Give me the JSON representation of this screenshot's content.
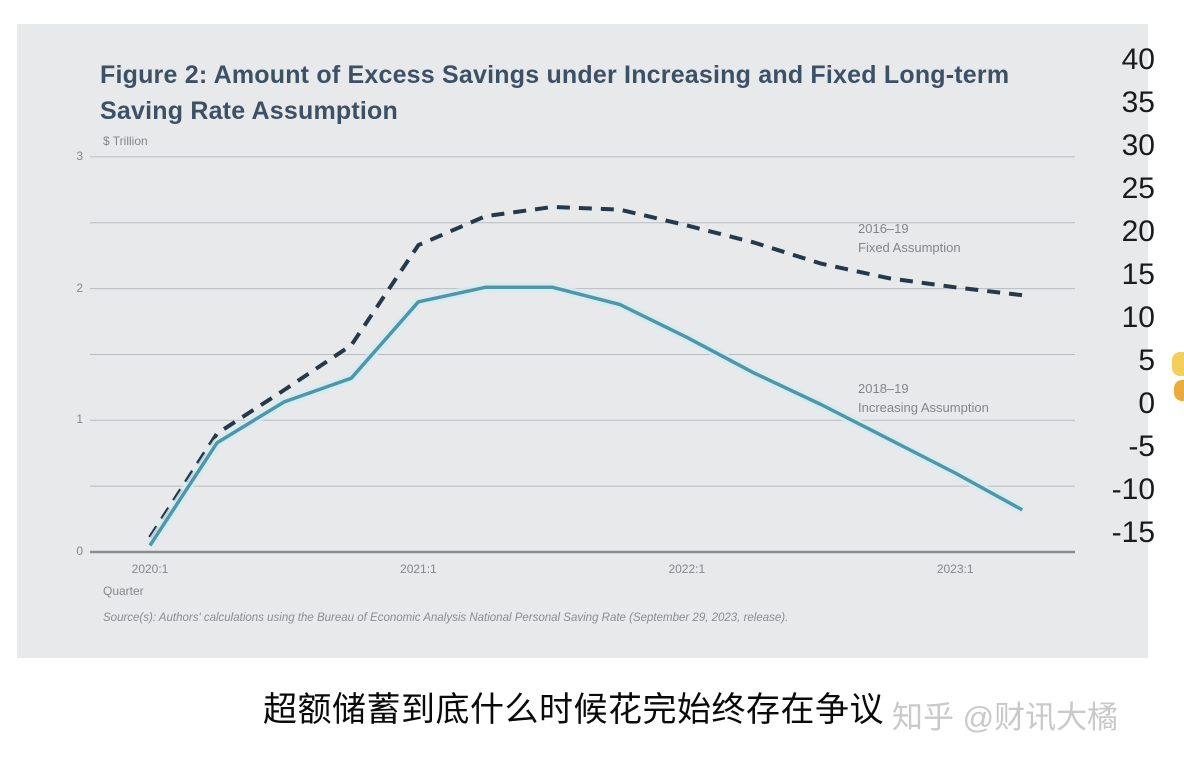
{
  "page": {
    "caption": "超额储蓄到底什么时候花完始终存在争议",
    "watermark": "知乎 @财讯大橘"
  },
  "right_strip": {
    "values": [
      "40",
      "35",
      "30",
      "25",
      "20",
      "15",
      "10",
      "5",
      "0",
      "-5",
      "-10",
      "-15"
    ]
  },
  "chart": {
    "title": "Figure 2: Amount of Excess Savings under Increasing and Fixed Long-term Saving Rate Assumption",
    "unit_label": "$ Trillion",
    "x_axis_label": "Quarter",
    "source": "Source(s): Authors' calculations using the Bureau of Economic Analysis National Personal Saving Rate (September 29, 2023, release).",
    "annotations": {
      "fixed": {
        "line1": "2016–19",
        "line2": "Fixed Assumption"
      },
      "increasing": {
        "line1": "2018–19",
        "line2": "Increasing Assumption"
      }
    },
    "colors": {
      "panel_bg": "#e7e9ea",
      "title_text": "#3d5166",
      "fixed_line": "#26394a",
      "increasing_line": "#4f96a8",
      "increasing_halo": "#d4ecf2",
      "gridline": "#b9bcc0",
      "zero_axis": "#8a8d90",
      "axis_text": "#84888c"
    }
  },
  "chart_data": {
    "type": "line",
    "title": "Figure 2: Amount of Excess Savings under Increasing and Fixed Long-term Saving Rate Assumption",
    "xlabel": "Quarter",
    "ylabel": "$ Trillion",
    "ylim": [
      0,
      3
    ],
    "grid": true,
    "legend_position": "inline-annotations",
    "x": [
      "2020:1",
      "2020:2",
      "2020:3",
      "2020:4",
      "2021:1",
      "2021:2",
      "2021:3",
      "2021:4",
      "2022:1",
      "2022:2",
      "2022:3",
      "2022:4",
      "2023:1",
      "2023:2"
    ],
    "x_ticks": [
      {
        "index": 0,
        "label": "2020:1"
      },
      {
        "index": 4,
        "label": "2021:1"
      },
      {
        "index": 8,
        "label": "2022:1"
      },
      {
        "index": 12,
        "label": "2023:1"
      }
    ],
    "y_ticks": [
      0,
      1,
      2,
      3
    ],
    "y_gridlines": [
      0,
      0.5,
      1,
      1.5,
      2,
      2.5,
      3
    ],
    "series": [
      {
        "name": "2016–19 Fixed Assumption",
        "line_style": "dashed",
        "color": "#26394a",
        "values": [
          0.11,
          0.9,
          1.23,
          1.57,
          2.33,
          2.55,
          2.62,
          2.6,
          2.48,
          2.35,
          2.19,
          2.08,
          2.01,
          1.95
        ]
      },
      {
        "name": "2018–19 Increasing Assumption",
        "line_style": "solid",
        "color": "#4f96a8",
        "values": [
          0.05,
          0.83,
          1.14,
          1.32,
          1.9,
          2.01,
          2.01,
          1.88,
          1.63,
          1.36,
          1.12,
          0.86,
          0.6,
          0.32
        ]
      }
    ]
  }
}
